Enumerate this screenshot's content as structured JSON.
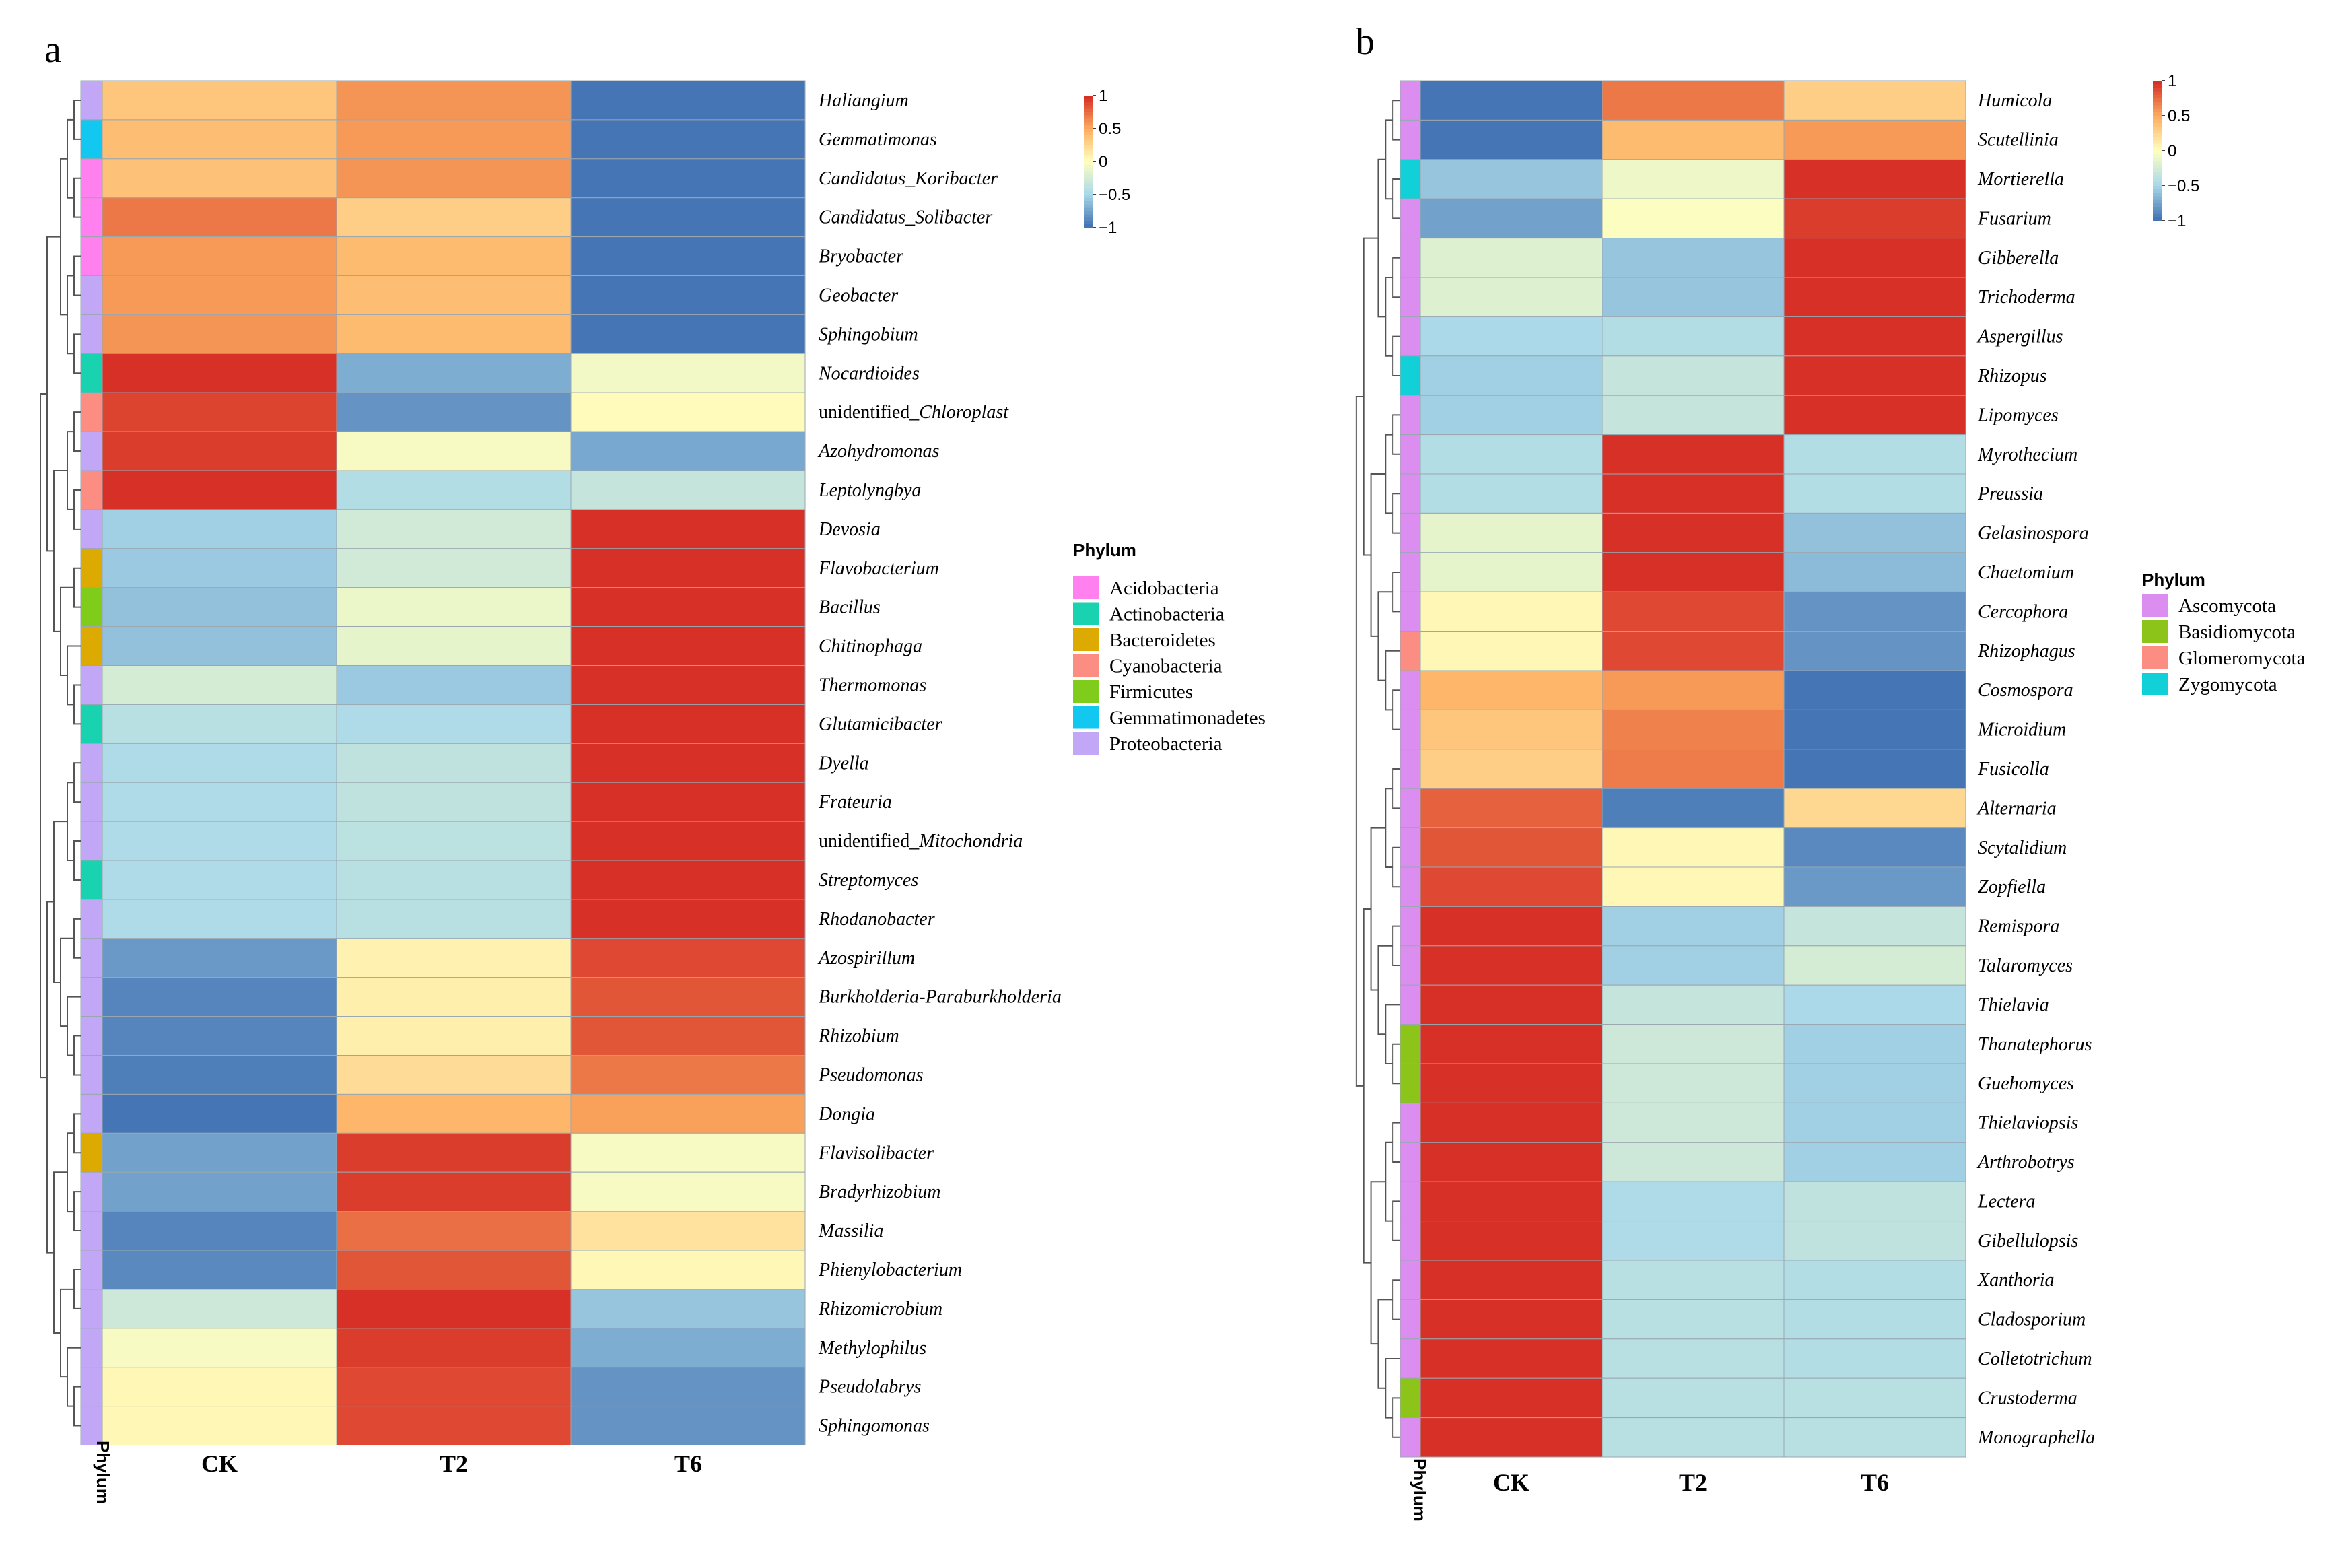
{
  "chart_data": [
    {
      "type": "heatmap",
      "panel": "a",
      "columns": [
        "CK",
        "T2",
        "T6"
      ],
      "annotation_label": "Phylum",
      "color_scale": {
        "ticks": [
          1,
          0.5,
          0,
          -0.5,
          -1
        ],
        "tick_labels": [
          "1",
          "0.5",
          "0",
          "−0.5",
          "−1"
        ],
        "colors": [
          "#d73027",
          "#fdae61",
          "#ffffbf",
          "#abd9e9",
          "#4575b4"
        ]
      },
      "legend": {
        "title": "Phylum",
        "items": [
          {
            "name": "Acidobacteria",
            "color": "#ff80ee"
          },
          {
            "name": "Actinobacteria",
            "color": "#19d3b0"
          },
          {
            "name": "Bacteroidetes",
            "color": "#dcaa00"
          },
          {
            "name": "Cyanobacteria",
            "color": "#fc8d82"
          },
          {
            "name": "Firmicutes",
            "color": "#7fcc1a"
          },
          {
            "name": "Gemmatimonadetes",
            "color": "#12c7f0"
          },
          {
            "name": "Proteobacteria",
            "color": "#c2a7f7"
          }
        ]
      },
      "rows": [
        {
          "prefix": "",
          "name": "Haliangium",
          "phylum": "Proteobacteria",
          "values": [
            0.35,
            0.6,
            -1.0
          ]
        },
        {
          "prefix": "",
          "name": "Gemmatimonas",
          "phylum": "Gemmatimonadetes",
          "values": [
            0.4,
            0.58,
            -1.0
          ]
        },
        {
          "prefix": "",
          "name": "Candidatus_Koribacter",
          "phylum": "Acidobacteria",
          "values": [
            0.38,
            0.6,
            -1.0
          ]
        },
        {
          "prefix": "",
          "name": "Candidatus_Solibacter",
          "phylum": "Acidobacteria",
          "values": [
            0.72,
            0.3,
            -1.0
          ]
        },
        {
          "prefix": "",
          "name": "Bryobacter",
          "phylum": "Acidobacteria",
          "values": [
            0.58,
            0.42,
            -1.0
          ]
        },
        {
          "prefix": "",
          "name": "Geobacter",
          "phylum": "Proteobacteria",
          "values": [
            0.58,
            0.4,
            -1.0
          ]
        },
        {
          "prefix": "",
          "name": "Sphingobium",
          "phylum": "Proteobacteria",
          "values": [
            0.6,
            0.42,
            -1.0
          ]
        },
        {
          "prefix": "",
          "name": "Nocardioides",
          "phylum": "Actinobacteria",
          "values": [
            1.0,
            -0.72,
            -0.08
          ]
        },
        {
          "prefix": "unidentified_",
          "name": "Chloroplast",
          "phylum": "Cyanobacteria",
          "values": [
            0.92,
            -0.85,
            0.02
          ]
        },
        {
          "prefix": "",
          "name": "Azohydromonas",
          "phylum": "Proteobacteria",
          "values": [
            0.95,
            -0.05,
            -0.75
          ]
        },
        {
          "prefix": "",
          "name": "Leptolyngbya",
          "phylum": "Cyanobacteria",
          "values": [
            1.0,
            -0.45,
            -0.35
          ]
        },
        {
          "prefix": "",
          "name": "Devosia",
          "phylum": "Proteobacteria",
          "values": [
            -0.55,
            -0.28,
            1.0
          ]
        },
        {
          "prefix": "",
          "name": "Flavobacterium",
          "phylum": "Bacteroidetes",
          "values": [
            -0.58,
            -0.28,
            1.0
          ]
        },
        {
          "prefix": "",
          "name": "Bacillus",
          "phylum": "Firmicutes",
          "values": [
            -0.62,
            -0.12,
            1.0
          ]
        },
        {
          "prefix": "",
          "name": "Chitinophaga",
          "phylum": "Bacteroidetes",
          "values": [
            -0.62,
            -0.15,
            1.0
          ]
        },
        {
          "prefix": "",
          "name": "Thermomonas",
          "phylum": "Proteobacteria",
          "values": [
            -0.25,
            -0.58,
            1.0
          ]
        },
        {
          "prefix": "",
          "name": "Glutamicibacter",
          "phylum": "Actinobacteria",
          "values": [
            -0.42,
            -0.48,
            1.0
          ]
        },
        {
          "prefix": "",
          "name": "Dyella",
          "phylum": "Proteobacteria",
          "values": [
            -0.48,
            -0.38,
            1.0
          ]
        },
        {
          "prefix": "",
          "name": "Frateuria",
          "phylum": "Proteobacteria",
          "values": [
            -0.48,
            -0.38,
            1.0
          ]
        },
        {
          "prefix": "unidentified_",
          "name": "Mitochondria",
          "phylum": "Proteobacteria",
          "values": [
            -0.48,
            -0.4,
            1.0
          ]
        },
        {
          "prefix": "",
          "name": "Streptomyces",
          "phylum": "Actinobacteria",
          "values": [
            -0.48,
            -0.42,
            1.0
          ]
        },
        {
          "prefix": "",
          "name": "Rhodanobacter",
          "phylum": "Proteobacteria",
          "values": [
            -0.48,
            -0.42,
            1.0
          ]
        },
        {
          "prefix": "",
          "name": "Azospirillum",
          "phylum": "Proteobacteria",
          "values": [
            -0.82,
            0.08,
            0.9
          ]
        },
        {
          "prefix": "",
          "name": "Burkholderia-Paraburkholderia",
          "phylum": "Proteobacteria",
          "values": [
            -0.92,
            0.1,
            0.85
          ]
        },
        {
          "prefix": "",
          "name": "Rhizobium",
          "phylum": "Proteobacteria",
          "values": [
            -0.92,
            0.1,
            0.85
          ]
        },
        {
          "prefix": "",
          "name": "Pseudomonas",
          "phylum": "Proteobacteria",
          "values": [
            -0.95,
            0.22,
            0.72
          ]
        },
        {
          "prefix": "",
          "name": "Dongia",
          "phylum": "Proteobacteria",
          "values": [
            -1.0,
            0.45,
            0.55
          ]
        },
        {
          "prefix": "",
          "name": "Flavisolibacter",
          "phylum": "Bacteroidetes",
          "values": [
            -0.78,
            0.95,
            -0.05
          ]
        },
        {
          "prefix": "",
          "name": "Bradyrhizobium",
          "phylum": "Proteobacteria",
          "values": [
            -0.78,
            0.95,
            -0.05
          ]
        },
        {
          "prefix": "",
          "name": "Massilia",
          "phylum": "Proteobacteria",
          "values": [
            -0.92,
            0.75,
            0.18
          ]
        },
        {
          "prefix": "",
          "name": "Phienylobacterium",
          "phylum": "Proteobacteria",
          "values": [
            -0.9,
            0.85,
            0.05
          ]
        },
        {
          "prefix": "",
          "name": "Rhizomicrobium",
          "phylum": "Proteobacteria",
          "values": [
            -0.3,
            1.0,
            -0.6
          ]
        },
        {
          "prefix": "",
          "name": "Methylophilus",
          "phylum": "Proteobacteria",
          "values": [
            -0.05,
            0.95,
            -0.72
          ]
        },
        {
          "prefix": "",
          "name": "Pseudolabrys",
          "phylum": "Proteobacteria",
          "values": [
            0.05,
            0.9,
            -0.85
          ]
        },
        {
          "prefix": "",
          "name": "Sphingomonas",
          "phylum": "Proteobacteria",
          "values": [
            0.05,
            0.9,
            -0.85
          ]
        }
      ]
    },
    {
      "type": "heatmap",
      "panel": "b",
      "columns": [
        "CK",
        "T2",
        "T6"
      ],
      "annotation_label": "Phylum",
      "color_scale": {
        "ticks": [
          1,
          0.5,
          0,
          -0.5,
          -1
        ],
        "tick_labels": [
          "1",
          "0.5",
          "0",
          "−0.5",
          "−1"
        ],
        "colors": [
          "#d73027",
          "#fdae61",
          "#ffffbf",
          "#abd9e9",
          "#4575b4"
        ]
      },
      "legend": {
        "title": "Phylum",
        "items": [
          {
            "name": "Ascomycota",
            "color": "#dc8ef0"
          },
          {
            "name": "Basidiomycota",
            "color": "#8cc41a"
          },
          {
            "name": "Glomeromycota",
            "color": "#fc8d82"
          },
          {
            "name": "Zygomycota",
            "color": "#12d0d8"
          }
        ]
      },
      "rows": [
        {
          "name": "Humicola",
          "phylum": "Ascomycota",
          "values": [
            -1.0,
            0.72,
            0.3
          ]
        },
        {
          "name": "Scutellinia",
          "phylum": "Ascomycota",
          "values": [
            -1.0,
            0.42,
            0.58
          ]
        },
        {
          "name": "Mortierella",
          "phylum": "Zygomycota",
          "values": [
            -0.6,
            -0.1,
            1.0
          ]
        },
        {
          "name": "Fusarium",
          "phylum": "Ascomycota",
          "values": [
            -0.78,
            -0.02,
            0.95
          ]
        },
        {
          "name": "Gibberella",
          "phylum": "Ascomycota",
          "values": [
            -0.2,
            -0.6,
            1.0
          ]
        },
        {
          "name": "Trichoderma",
          "phylum": "Ascomycota",
          "values": [
            -0.2,
            -0.6,
            1.0
          ]
        },
        {
          "name": "Aspergillus",
          "phylum": "Ascomycota",
          "values": [
            -0.5,
            -0.45,
            1.0
          ]
        },
        {
          "name": "Rhizopus",
          "phylum": "Zygomycota",
          "values": [
            -0.55,
            -0.35,
            1.0
          ]
        },
        {
          "name": "Lipomyces",
          "phylum": "Ascomycota",
          "values": [
            -0.55,
            -0.35,
            1.0
          ]
        },
        {
          "name": "Myrothecium",
          "phylum": "Ascomycota",
          "values": [
            -0.45,
            1.0,
            -0.45
          ]
        },
        {
          "name": "Preussia",
          "phylum": "Ascomycota",
          "values": [
            -0.45,
            1.0,
            -0.45
          ]
        },
        {
          "name": "Gelasinospora",
          "phylum": "Ascomycota",
          "values": [
            -0.15,
            1.0,
            -0.62
          ]
        },
        {
          "name": "Chaetomium",
          "phylum": "Ascomycota",
          "values": [
            -0.15,
            1.0,
            -0.65
          ]
        },
        {
          "name": "Cercophora",
          "phylum": "Ascomycota",
          "values": [
            0.05,
            0.9,
            -0.85
          ]
        },
        {
          "name": "Rhizophagus",
          "phylum": "Glomeromycota",
          "values": [
            0.05,
            0.9,
            -0.85
          ]
        },
        {
          "name": "Cosmospora",
          "phylum": "Ascomycota",
          "values": [
            0.45,
            0.58,
            -1.0
          ]
        },
        {
          "name": "Microidium",
          "phylum": "Ascomycota",
          "values": [
            0.35,
            0.68,
            -1.0
          ]
        },
        {
          "name": "Fusicolla",
          "phylum": "Ascomycota",
          "values": [
            0.3,
            0.7,
            -1.0
          ]
        },
        {
          "name": "Alternaria",
          "phylum": "Ascomycota",
          "values": [
            0.8,
            -0.95,
            0.25
          ]
        },
        {
          "name": "Scytalidium",
          "phylum": "Ascomycota",
          "values": [
            0.85,
            0.05,
            -0.9
          ]
        },
        {
          "name": "Zopfiella",
          "phylum": "Ascomycota",
          "values": [
            0.9,
            0.05,
            -0.82
          ]
        },
        {
          "name": "Remispora",
          "phylum": "Ascomycota",
          "values": [
            1.0,
            -0.55,
            -0.35
          ]
        },
        {
          "name": "Talaromyces",
          "phylum": "Ascomycota",
          "values": [
            1.0,
            -0.55,
            -0.25
          ]
        },
        {
          "name": "Thielavia",
          "phylum": "Ascomycota",
          "values": [
            1.0,
            -0.35,
            -0.5
          ]
        },
        {
          "name": "Thanatephorus",
          "phylum": "Basidiomycota",
          "values": [
            1.0,
            -0.3,
            -0.55
          ]
        },
        {
          "name": "Guehomyces",
          "phylum": "Basidiomycota",
          "values": [
            1.0,
            -0.3,
            -0.55
          ]
        },
        {
          "name": "Thielaviopsis",
          "phylum": "Ascomycota",
          "values": [
            1.0,
            -0.3,
            -0.55
          ]
        },
        {
          "name": "Arthrobotrys",
          "phylum": "Ascomycota",
          "values": [
            1.0,
            -0.3,
            -0.55
          ]
        },
        {
          "name": "Lectera",
          "phylum": "Ascomycota",
          "values": [
            1.0,
            -0.48,
            -0.38
          ]
        },
        {
          "name": "Gibellulopsis",
          "phylum": "Ascomycota",
          "values": [
            1.0,
            -0.48,
            -0.38
          ]
        },
        {
          "name": "Xanthoria",
          "phylum": "Ascomycota",
          "values": [
            1.0,
            -0.42,
            -0.45
          ]
        },
        {
          "name": "Cladosporium",
          "phylum": "Ascomycota",
          "values": [
            1.0,
            -0.42,
            -0.45
          ]
        },
        {
          "name": "Colletotrichum",
          "phylum": "Ascomycota",
          "values": [
            1.0,
            -0.42,
            -0.45
          ]
        },
        {
          "name": "Crustoderma",
          "phylum": "Basidiomycota",
          "values": [
            1.0,
            -0.42,
            -0.42
          ]
        },
        {
          "name": "Monographella",
          "phylum": "Ascomycota",
          "values": [
            1.0,
            -0.42,
            -0.42
          ]
        }
      ]
    }
  ]
}
